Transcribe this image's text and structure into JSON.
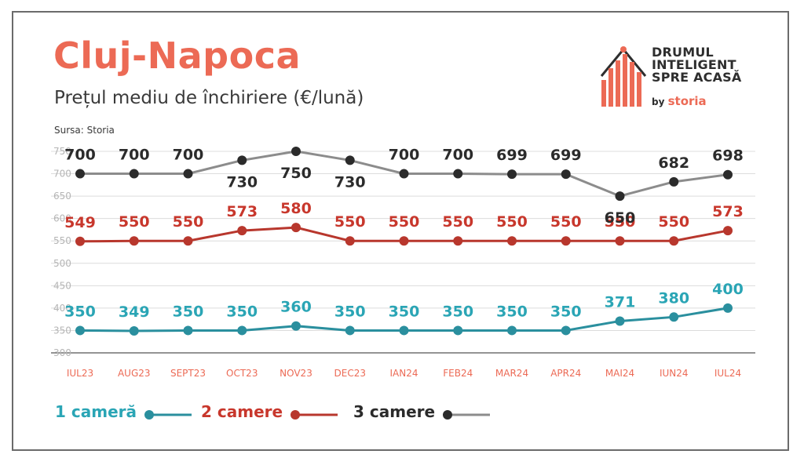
{
  "header": {
    "title": "Cluj-Napoca",
    "subtitle": "Prețul mediu de închiriere (€/lună)",
    "source": "Sursa: Storia"
  },
  "brand": {
    "line1": "DRUMUL",
    "line2": "INTELIGENT",
    "line3": "SPRE ACASĂ",
    "by": "by ",
    "storia": "storia",
    "icon": "house-bars-icon",
    "color": "#ec6a55"
  },
  "chart_data": {
    "type": "line",
    "categories": [
      "IUL23",
      "AUG23",
      "SEPT23",
      "OCT23",
      "NOV23",
      "DEC23",
      "IAN24",
      "FEB24",
      "MAR24",
      "APR24",
      "MAI24",
      "IUN24",
      "IUL24"
    ],
    "ylim": [
      300,
      750
    ],
    "yticks": [
      300,
      350,
      400,
      450,
      500,
      550,
      600,
      650,
      700,
      750
    ],
    "grid": true,
    "legend_position": "bottom",
    "series": [
      {
        "name": "1 cameră",
        "color": "#2a8f9e",
        "label_color": "#2aa5b5",
        "values": [
          350,
          349,
          350,
          350,
          360,
          350,
          350,
          350,
          350,
          350,
          371,
          380,
          400
        ]
      },
      {
        "name": "2 camere",
        "color": "#b8372d",
        "label_color": "#c8372c",
        "values": [
          549,
          550,
          550,
          573,
          580,
          550,
          550,
          550,
          550,
          550,
          550,
          550,
          573
        ]
      },
      {
        "name": "3 camere",
        "color": "#8c8c8c",
        "label_color": "#2b2b2b",
        "marker_color": "#2b2b2b",
        "values": [
          700,
          700,
          700,
          730,
          750,
          730,
          700,
          700,
          699,
          699,
          650,
          682,
          698
        ]
      }
    ]
  }
}
